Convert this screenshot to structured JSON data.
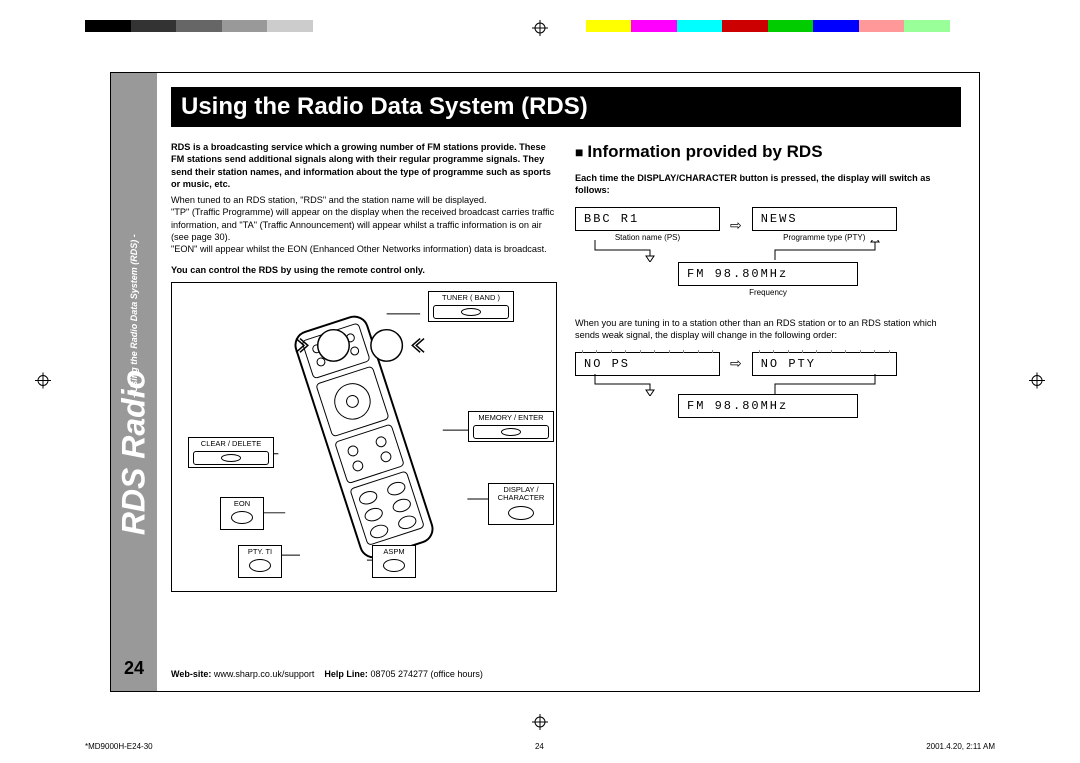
{
  "color_bar": [
    "#000000",
    "#333333",
    "#666666",
    "#999999",
    "#cccccc",
    "#ffffff",
    "#ffffff",
    "#ffffff",
    "#ffffff",
    "#ffffff",
    "#ffffff",
    "#ffff00",
    "#ff00ff",
    "#00ffff",
    "#cc0000",
    "#00cc00",
    "#0000ff",
    "#ff9999",
    "#99ff99",
    "#ffffff"
  ],
  "sidebar": {
    "main": "RDS Radio",
    "sub": "- Using the Radio Data System (RDS) -",
    "page_num": "24"
  },
  "title": "Using the Radio Data System (RDS)",
  "left": {
    "para1": "RDS is a broadcasting service which a growing number of FM stations provide. These FM stations send additional signals along with their regular programme signals. They send their station names, and information about the type of programme such as sports or music, etc.",
    "line1": "When tuned to an RDS station, \"RDS\" and the station name will be displayed.",
    "line2": "\"TP\" (Traffic Programme) will appear on the display when the received broadcast carries traffic information, and \"TA\" (Traffic Announcement) will appear whilst a traffic information is on air (see page 30).",
    "line3": "\"EON\" will appear whilst the EON (Enhanced Other Networks information) data is broadcast.",
    "note": "You can control the RDS by using the remote control only.",
    "labels": {
      "tuner": "TUNER ( BAND )",
      "memory": "MEMORY / ENTER",
      "clear": "CLEAR / DELETE",
      "display": "DISPLAY / CHARACTER",
      "eon": "EON",
      "pty": "PTY. TI",
      "aspm": "ASPM"
    }
  },
  "right": {
    "heading": "Information provided by RDS",
    "intro": "Each time the DISPLAY/CHARACTER button is pressed, the display will switch as follows:",
    "box1": "BBC R1",
    "cap1": "Station name (PS)",
    "box2": "NEWS",
    "cap2": "Programme type (PTY)",
    "box3": "FM 98.80MHz",
    "cap3": "Frequency",
    "para2": "When you are tuning in to a station other than an RDS station or to an RDS station which sends weak signal, the display will change in the following order:",
    "box4": "NO PS",
    "box5": "NO PTY",
    "box6": "FM 98.80MHz"
  },
  "footer": {
    "web_label": "Web-site:",
    "web": "www.sharp.co.uk/support",
    "help_label": "Help Line:",
    "help": "08705 274277 (office hours)"
  },
  "meta": {
    "file": "*MD9000H-E24-30",
    "pg": "24",
    "ts": "2001.4.20, 2:11 AM"
  }
}
